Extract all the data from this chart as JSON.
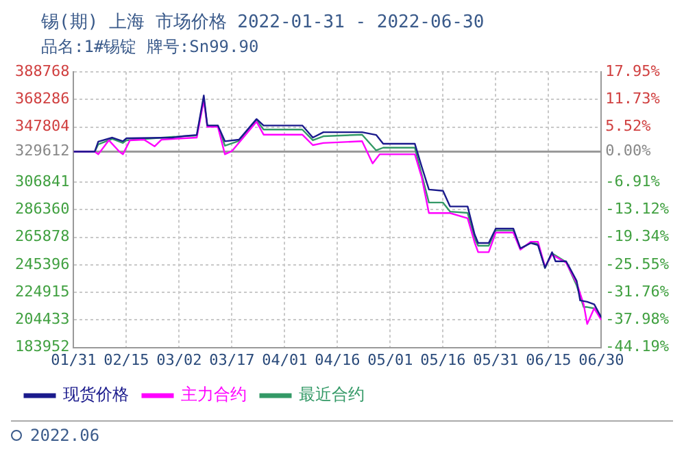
{
  "chart_data": {
    "type": "line",
    "title": "锡(期) 上海 市场价格 2022-01-31 - 2022-06-30",
    "subtitle": "品名:1#锡锭 牌号:Sn99.90",
    "annotations": [
      "2022.06"
    ],
    "xlim": [
      "2022-01-31",
      "2022-06-30"
    ],
    "xticks": [
      {
        "value": "2022-01-31",
        "label": "01/31"
      },
      {
        "value": "2022-02-15",
        "label": "02/15"
      },
      {
        "value": "2022-03-02",
        "label": "03/02"
      },
      {
        "value": "2022-03-17",
        "label": "03/17"
      },
      {
        "value": "2022-04-01",
        "label": "04/01"
      },
      {
        "value": "2022-04-16",
        "label": "04/16"
      },
      {
        "value": "2022-05-01",
        "label": "05/01"
      },
      {
        "value": "2022-05-16",
        "label": "05/16"
      },
      {
        "value": "2022-05-31",
        "label": "05/31"
      },
      {
        "value": "2022-06-15",
        "label": "06/15"
      },
      {
        "value": "2022-06-30",
        "label": "06/30"
      }
    ],
    "ylim": [
      183952,
      388768
    ],
    "yticks": [
      183952,
      204433,
      224915,
      245396,
      265878,
      286360,
      306841,
      329612,
      347804,
      368286,
      388768
    ],
    "y2lim": [
      -44.19,
      17.95
    ],
    "y2ticks": [
      {
        "value": -44.19,
        "label": "-44.19%"
      },
      {
        "value": -37.98,
        "label": "-37.98%"
      },
      {
        "value": -31.76,
        "label": "-31.76%"
      },
      {
        "value": -25.55,
        "label": "-25.55%"
      },
      {
        "value": -19.34,
        "label": "-19.34%"
      },
      {
        "value": -13.12,
        "label": "-13.12%"
      },
      {
        "value": -6.91,
        "label": "-6.91%"
      },
      {
        "value": 0,
        "label": "0.00%"
      },
      {
        "value": 5.52,
        "label": "5.52%"
      },
      {
        "value": 11.73,
        "label": "11.73%"
      },
      {
        "value": 17.95,
        "label": "17.95%"
      }
    ],
    "ref_lines": [
      {
        "axis": "y",
        "value": 329612,
        "color": "#999999"
      }
    ],
    "grid": true,
    "legend": "bottom",
    "marker": "none",
    "line_style": "solid",
    "series": [
      {
        "name": "现货价格",
        "color": "#1a1a8c",
        "x": [
          "2022-01-31",
          "2022-02-06",
          "2022-02-07",
          "2022-02-11",
          "2022-02-14",
          "2022-02-15",
          "2022-02-28",
          "2022-03-03",
          "2022-03-07",
          "2022-03-09",
          "2022-03-10",
          "2022-03-13",
          "2022-03-15",
          "2022-03-19",
          "2022-03-24",
          "2022-03-26",
          "2022-04-06",
          "2022-04-09",
          "2022-04-12",
          "2022-04-23",
          "2022-04-27",
          "2022-04-29",
          "2022-05-08",
          "2022-05-10",
          "2022-05-12",
          "2022-05-16",
          "2022-05-18",
          "2022-05-23",
          "2022-05-25",
          "2022-05-26",
          "2022-05-29",
          "2022-05-31",
          "2022-06-05",
          "2022-06-07",
          "2022-06-10",
          "2022-06-12",
          "2022-06-14",
          "2022-06-16",
          "2022-06-17",
          "2022-06-20",
          "2022-06-21",
          "2022-06-23",
          "2022-06-24",
          "2022-06-26",
          "2022-06-28",
          "2022-06-30"
        ],
        "values": [
          329600,
          329600,
          337000,
          340000,
          337300,
          339500,
          340000,
          341000,
          342000,
          371300,
          349000,
          349000,
          337300,
          338500,
          353800,
          349000,
          349000,
          340000,
          344000,
          344000,
          342000,
          335400,
          335400,
          318000,
          301400,
          300400,
          288800,
          288800,
          268000,
          261600,
          261600,
          272300,
          272300,
          257700,
          261600,
          260000,
          243200,
          254800,
          248000,
          248000,
          243200,
          233500,
          218900,
          217900,
          216000,
          206300
        ]
      },
      {
        "name": "主力合约",
        "color": "#ff00ff",
        "x": [
          "2022-01-31",
          "2022-02-06",
          "2022-02-07",
          "2022-02-10",
          "2022-02-13",
          "2022-02-14",
          "2022-02-16",
          "2022-02-20",
          "2022-02-23",
          "2022-02-25",
          "2022-02-28",
          "2022-03-07",
          "2022-03-09",
          "2022-03-10",
          "2022-03-13",
          "2022-03-15",
          "2022-03-17",
          "2022-03-24",
          "2022-03-26",
          "2022-04-06",
          "2022-04-09",
          "2022-04-12",
          "2022-04-23",
          "2022-04-26",
          "2022-04-28",
          "2022-05-08",
          "2022-05-10",
          "2022-05-12",
          "2022-05-18",
          "2022-05-23",
          "2022-05-25",
          "2022-05-26",
          "2022-05-29",
          "2022-05-31",
          "2022-06-05",
          "2022-06-07",
          "2022-06-10",
          "2022-06-12",
          "2022-06-14",
          "2022-06-16",
          "2022-06-20",
          "2022-06-23",
          "2022-06-25",
          "2022-06-26",
          "2022-06-28",
          "2022-06-30"
        ],
        "values": [
          329600,
          329600,
          327600,
          338000,
          329600,
          327600,
          338000,
          338500,
          333500,
          338500,
          339000,
          340000,
          368000,
          348000,
          348000,
          327600,
          330000,
          351800,
          342200,
          342200,
          334400,
          336000,
          337300,
          320800,
          327600,
          327600,
          310000,
          283900,
          283900,
          280000,
          262000,
          254800,
          254800,
          269400,
          269400,
          256700,
          262600,
          262600,
          244000,
          253000,
          247000,
          232000,
          216000,
          201400,
          213100,
          204400
        ]
      },
      {
        "name": "最近合约",
        "color": "#339966",
        "x": [
          "2022-01-31",
          "2022-02-06",
          "2022-02-07",
          "2022-02-11",
          "2022-02-14",
          "2022-02-15",
          "2022-02-28",
          "2022-03-07",
          "2022-03-09",
          "2022-03-10",
          "2022-03-13",
          "2022-03-15",
          "2022-03-19",
          "2022-03-24",
          "2022-03-26",
          "2022-04-06",
          "2022-04-09",
          "2022-04-12",
          "2022-04-23",
          "2022-04-27",
          "2022-04-29",
          "2022-05-08",
          "2022-05-10",
          "2022-05-12",
          "2022-05-16",
          "2022-05-18",
          "2022-05-23",
          "2022-05-25",
          "2022-05-26",
          "2022-05-29",
          "2022-05-31",
          "2022-06-05",
          "2022-06-07",
          "2022-06-10",
          "2022-06-12",
          "2022-06-14",
          "2022-06-16",
          "2022-06-20",
          "2022-06-23",
          "2022-06-25",
          "2022-06-26",
          "2022-06-28",
          "2022-06-30"
        ],
        "values": [
          329600,
          329600,
          335000,
          339000,
          336000,
          338000,
          340500,
          341500,
          369000,
          349000,
          349000,
          334000,
          337500,
          353000,
          346000,
          346000,
          338000,
          341000,
          342200,
          330500,
          332500,
          332500,
          312000,
          291700,
          291700,
          285000,
          284000,
          265000,
          259600,
          259600,
          271000,
          271000,
          257000,
          262000,
          261000,
          243000,
          254000,
          247500,
          230000,
          214000,
          214000,
          213000,
          205500
        ]
      }
    ]
  }
}
